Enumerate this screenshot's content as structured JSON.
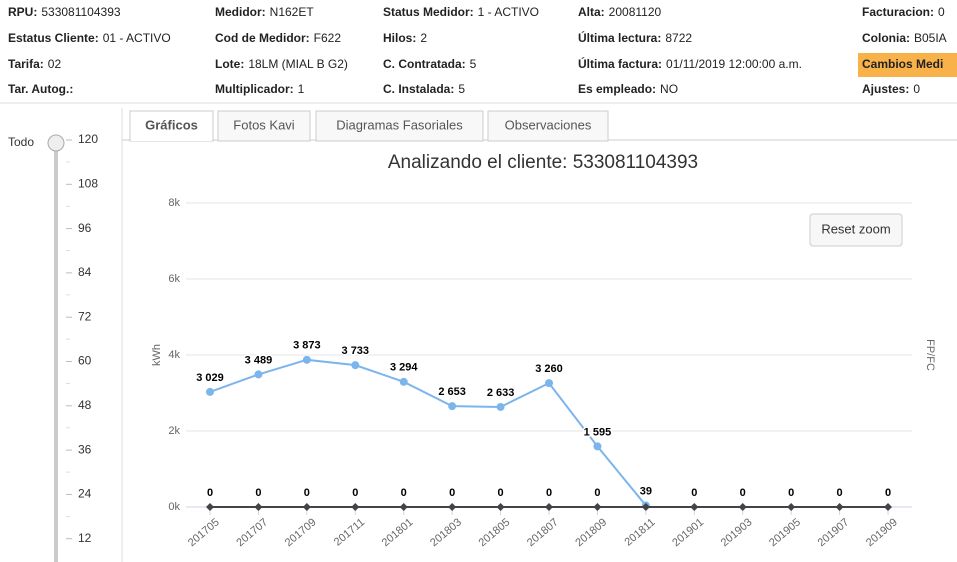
{
  "header": {
    "rows": [
      [
        {
          "label": "RPU:",
          "value": "533081104393"
        },
        {
          "label": "Medidor:",
          "value": "N162ET"
        },
        {
          "label": "Status Medidor:",
          "value": "1 - ACTIVO"
        },
        {
          "label": "Alta:",
          "value": "20081120"
        },
        {
          "label": "Facturacion:",
          "value": "0"
        }
      ],
      [
        {
          "label": "Estatus Cliente:",
          "value": "01 - ACTIVO"
        },
        {
          "label": "Cod de Medidor:",
          "value": "F622"
        },
        {
          "label": "Hilos:",
          "value": "2"
        },
        {
          "label": "Última lectura:",
          "value": "8722"
        },
        {
          "label": "Colonia:",
          "value": "B05IA"
        }
      ],
      [
        {
          "label": "Tarifa:",
          "value": "02"
        },
        {
          "label": "Lote:",
          "value": "18LM (MIAL B G2)"
        },
        {
          "label": "C. Contratada:",
          "value": "5"
        },
        {
          "label": "Última factura:",
          "value": "01/11/2019 12:00:00 a.m."
        },
        {
          "label": "Cambios Medi",
          "highlight": true
        }
      ],
      [
        {
          "label": "Tar. Autog.:"
        },
        {
          "label": "Multiplicador:",
          "value": "1"
        },
        {
          "label": "C. Instalada:",
          "value": "5"
        },
        {
          "label": "Es empleado:",
          "value": "NO"
        },
        {
          "label": "Ajustes:",
          "value": "0"
        }
      ]
    ]
  },
  "slider": {
    "label": "Todo",
    "ticks": [
      120,
      108,
      96,
      84,
      72,
      60,
      48,
      36,
      24,
      12
    ]
  },
  "tabs": {
    "items": [
      "Gráficos",
      "Fotos Kavi",
      "Diagramas Fasoriales",
      "Observaciones"
    ],
    "active": 0
  },
  "chart_data": {
    "type": "line",
    "title": "Analizando el cliente: 533081104393",
    "ylabel": "kWh",
    "y2label": "FP/FC",
    "button": "Reset zoom",
    "categories": [
      "201705",
      "201707",
      "201709",
      "201711",
      "201801",
      "201803",
      "201805",
      "201807",
      "201809",
      "201811",
      "201901",
      "201903",
      "201905",
      "201907",
      "201909"
    ],
    "ylim": [
      0,
      8000
    ],
    "yticks": [
      {
        "value": 0,
        "label": "0k"
      },
      {
        "value": 2000,
        "label": "2k"
      },
      {
        "value": 4000,
        "label": "4k"
      },
      {
        "value": 6000,
        "label": "6k"
      },
      {
        "value": 8000,
        "label": "8k"
      }
    ],
    "grid": true,
    "series": [
      {
        "color": "#7cb5ec",
        "values": [
          3029,
          3489,
          3873,
          3733,
          3294,
          2653,
          2633,
          3260,
          1595,
          39,
          null,
          null,
          null,
          null,
          null
        ],
        "value_labels": [
          "3 029",
          "3 489",
          "3 873",
          "3 733",
          "3 294",
          "2 653",
          "2 633",
          "3 260",
          "1 595",
          "39",
          null,
          null,
          null,
          null,
          null
        ]
      },
      {
        "color": "#434348",
        "values": [
          0,
          0,
          0,
          0,
          0,
          0,
          0,
          0,
          0,
          0,
          0,
          0,
          0,
          0,
          0
        ],
        "value_labels": [
          "0",
          "0",
          "0",
          "0",
          "0",
          "0",
          "0",
          "0",
          "0",
          null,
          "0",
          "0",
          "0",
          "0",
          "0"
        ]
      }
    ]
  }
}
